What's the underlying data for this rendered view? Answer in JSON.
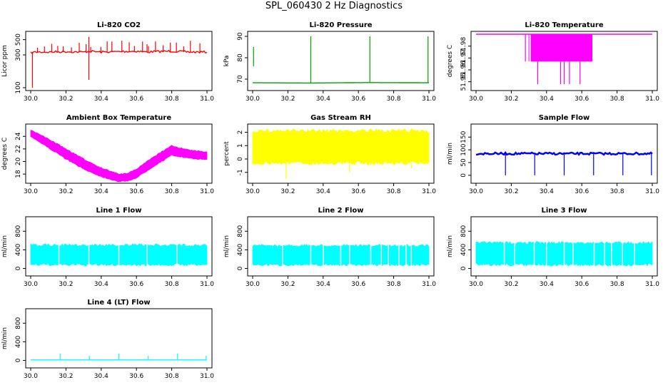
{
  "page_title": "SPL_060430  2 Hz Diagnostics",
  "chart_data": [
    {
      "id": "co2",
      "type": "line",
      "title": "Li-820 CO2",
      "ylabel": "Licor ppm",
      "color": "#ff0000",
      "xlim": [
        30.0,
        31.0
      ],
      "ylim": [
        100,
        600
      ],
      "yscale": "log",
      "xticks": [
        "30.0",
        "30.2",
        "30.4",
        "30.6",
        "30.8",
        "31.0"
      ],
      "yticks": [
        {
          "v": 100,
          "label": "100"
        },
        {
          "v": 300,
          "label": "300"
        },
        {
          "v": 500,
          "label": "500"
        }
      ],
      "series": [
        {
          "name": "CO2",
          "x": [
            30.0,
            30.02,
            30.1,
            30.2,
            30.3,
            30.33,
            30.4,
            30.5,
            30.6,
            30.66,
            30.7,
            30.8,
            30.9,
            31.0
          ],
          "values": [
            320,
            330,
            330,
            335,
            330,
            340,
            330,
            335,
            340,
            330,
            335,
            340,
            330,
            330
          ]
        }
      ],
      "spikes": [
        {
          "x": 30.01,
          "values": [
            100,
            330
          ]
        },
        {
          "x": 30.33,
          "values": [
            550,
            130
          ]
        },
        {
          "x": 30.66,
          "values": [
            330,
            430
          ]
        }
      ]
    },
    {
      "id": "pressure",
      "type": "line",
      "title": "Li-820 Pressure",
      "ylabel": "kPa",
      "color": "#00a000",
      "xlim": [
        30.0,
        31.0
      ],
      "ylim": [
        66,
        91
      ],
      "xticks": [
        "30.0",
        "30.2",
        "30.4",
        "30.6",
        "30.8",
        "31.0"
      ],
      "yticks": [
        {
          "v": 70,
          "label": "70"
        },
        {
          "v": 80,
          "label": "80"
        },
        {
          "v": 90,
          "label": "90"
        }
      ],
      "series": [
        {
          "name": "Pressure",
          "x": [
            30.0,
            30.33,
            30.66,
            31.0
          ],
          "values": [
            68.3,
            68.2,
            68.4,
            68.3
          ]
        }
      ],
      "spikes": [
        {
          "x": 30.005,
          "values": [
            76,
            85
          ]
        },
        {
          "x": 30.33,
          "values": [
            68.2,
            90
          ]
        },
        {
          "x": 30.665,
          "values": [
            68.4,
            90
          ]
        },
        {
          "x": 30.995,
          "values": [
            68.3,
            90
          ]
        }
      ]
    },
    {
      "id": "temperature",
      "type": "line",
      "title": "Li-820 Temperature",
      "ylabel": "degrees C",
      "color": "#ff00ff",
      "xlim": [
        30.0,
        31.0
      ],
      "ylim": [
        51.945,
        51.99
      ],
      "xticks": [
        "30.0",
        "30.2",
        "30.4",
        "30.6",
        "30.8",
        "31.0"
      ],
      "yticks": [
        {
          "v": 51.95,
          "label": "51.95"
        },
        {
          "v": 51.96,
          "label": "51.96"
        },
        {
          "v": 51.97,
          "label": "51.97"
        },
        {
          "v": 51.98,
          "label": "51.98"
        }
      ],
      "series": [
        {
          "name": "Temperature",
          "x": [
            30.0,
            31.0
          ],
          "values": [
            51.99,
            51.99
          ]
        }
      ],
      "band": {
        "x0": 30.31,
        "x1": 30.66,
        "values": [
          51.967,
          51.99
        ]
      },
      "spikes": [
        {
          "x": 30.28,
          "values": [
            51.99,
            51.967
          ]
        },
        {
          "x": 30.35,
          "values": [
            51.967,
            51.948
          ]
        },
        {
          "x": 30.48,
          "values": [
            51.967,
            51.948
          ]
        },
        {
          "x": 30.5,
          "values": [
            51.967,
            51.948
          ]
        },
        {
          "x": 30.53,
          "values": [
            51.967,
            51.948
          ]
        },
        {
          "x": 30.59,
          "values": [
            51.967,
            51.948
          ]
        }
      ]
    },
    {
      "id": "ambient",
      "type": "area",
      "title": "Ambient Box Temperature",
      "ylabel": "degrees C",
      "color": "#ff00ff",
      "xlim": [
        30.0,
        31.0
      ],
      "ylim": [
        17,
        25.5
      ],
      "xticks": [
        "30.0",
        "30.2",
        "30.4",
        "30.6",
        "30.8",
        "31.0"
      ],
      "yticks": [
        {
          "v": 18,
          "label": "18"
        },
        {
          "v": 20,
          "label": "20"
        },
        {
          "v": 22,
          "label": "22"
        },
        {
          "v": 24,
          "label": "24"
        }
      ],
      "series": [
        {
          "name": "upper",
          "x": [
            30.0,
            30.1,
            30.2,
            30.3,
            30.4,
            30.5,
            30.55,
            30.6,
            30.7,
            30.8,
            30.9,
            31.0
          ],
          "values": [
            25.0,
            23.6,
            22.0,
            20.4,
            19.0,
            18.0,
            18.1,
            18.8,
            20.8,
            22.5,
            21.8,
            21.5
          ]
        },
        {
          "name": "lower",
          "x": [
            30.0,
            30.1,
            30.2,
            30.3,
            30.4,
            30.5,
            30.55,
            30.6,
            30.7,
            30.8,
            30.9,
            31.0
          ],
          "values": [
            24.0,
            22.2,
            20.4,
            18.8,
            17.6,
            16.8,
            16.9,
            17.4,
            19.3,
            21.0,
            20.5,
            20.3
          ]
        }
      ]
    },
    {
      "id": "rh",
      "type": "area",
      "title": "Gas Stream RH",
      "ylabel": "percent",
      "color": "#ffff00",
      "xlim": [
        30.0,
        31.0
      ],
      "ylim": [
        -1.6,
        2.4
      ],
      "xticks": [
        "30.0",
        "30.2",
        "30.4",
        "30.6",
        "30.8",
        "31.0"
      ],
      "yticks": [
        {
          "v": -1,
          "label": "-1"
        },
        {
          "v": 0,
          "label": "0"
        },
        {
          "v": 1,
          "label": "1"
        },
        {
          "v": 2,
          "label": "2"
        }
      ],
      "series": [
        {
          "name": "upper",
          "x": [
            30.0,
            31.0
          ],
          "values": [
            2.1,
            2.1
          ]
        },
        {
          "name": "lower",
          "x": [
            30.0,
            31.0
          ],
          "values": [
            -0.3,
            -0.3
          ]
        }
      ],
      "spikes": [
        {
          "x": 30.19,
          "values": [
            -0.3,
            -1.5
          ]
        },
        {
          "x": 30.55,
          "values": [
            -0.3,
            -1.0
          ]
        },
        {
          "x": 30.9,
          "values": [
            -0.3,
            -0.7
          ]
        }
      ]
    },
    {
      "id": "sample",
      "type": "line",
      "title": "Sample Flow",
      "ylabel": "ml/min",
      "color": "#0000ff",
      "xlim": [
        30.0,
        31.0
      ],
      "ylim": [
        -20,
        190
      ],
      "xticks": [
        "30.0",
        "30.2",
        "30.4",
        "30.6",
        "30.8",
        "31.0"
      ],
      "yticks": [
        {
          "v": 0,
          "label": "0"
        },
        {
          "v": 50,
          "label": "50"
        },
        {
          "v": 100,
          "label": "100"
        },
        {
          "v": 150,
          "label": "150"
        }
      ],
      "series": [
        {
          "name": "Sample Flow",
          "x": [
            30.0,
            31.0
          ],
          "values": [
            85,
            85
          ]
        }
      ],
      "spikes": [
        {
          "x": 30.167,
          "values": [
            85,
            0
          ]
        },
        {
          "x": 30.333,
          "values": [
            85,
            0
          ]
        },
        {
          "x": 30.5,
          "values": [
            85,
            0
          ]
        },
        {
          "x": 30.667,
          "values": [
            85,
            0
          ]
        },
        {
          "x": 30.833,
          "values": [
            85,
            0
          ]
        },
        {
          "x": 30.995,
          "values": [
            85,
            0
          ]
        }
      ]
    },
    {
      "id": "line1",
      "type": "area",
      "title": "Line 1 Flow",
      "ylabel": "ml/min",
      "color": "#00ffff",
      "xlim": [
        30.0,
        31.0
      ],
      "ylim": [
        -100,
        1050
      ],
      "xticks": [
        "30.0",
        "30.2",
        "30.4",
        "30.6",
        "30.8",
        "31.0"
      ],
      "yticks": [
        {
          "v": 0,
          "label": "0"
        },
        {
          "v": 400,
          "label": "400"
        },
        {
          "v": 800,
          "label": "800"
        }
      ],
      "series": [
        {
          "name": "upper",
          "x": [
            30.0,
            31.0
          ],
          "values": [
            500,
            500
          ]
        },
        {
          "name": "lower",
          "x": [
            30.0,
            31.0
          ],
          "values": [
            80,
            80
          ]
        }
      ],
      "gaps": [
        30.16,
        30.33,
        30.5,
        30.66,
        30.83
      ]
    },
    {
      "id": "line2",
      "type": "area",
      "title": "Line 2 Flow",
      "ylabel": "ml/min",
      "color": "#00ffff",
      "xlim": [
        30.0,
        31.0
      ],
      "ylim": [
        -100,
        1050
      ],
      "xticks": [
        "30.0",
        "30.2",
        "30.4",
        "30.6",
        "30.8",
        "31.0"
      ],
      "yticks": [
        {
          "v": 0,
          "label": "0"
        },
        {
          "v": 400,
          "label": "400"
        },
        {
          "v": 800,
          "label": "800"
        }
      ],
      "series": [
        {
          "name": "upper",
          "x": [
            30.0,
            31.0
          ],
          "values": [
            490,
            490
          ]
        },
        {
          "name": "lower",
          "x": [
            30.0,
            31.0
          ],
          "values": [
            80,
            80
          ]
        }
      ],
      "gaps": [
        30.17,
        30.33,
        30.4,
        30.5,
        30.55,
        30.67,
        30.73,
        30.77,
        30.83,
        30.87,
        30.9
      ]
    },
    {
      "id": "line3",
      "type": "area",
      "title": "Line 3 Flow",
      "ylabel": "ml/min",
      "color": "#00ffff",
      "xlim": [
        30.0,
        31.0
      ],
      "ylim": [
        -100,
        1050
      ],
      "xticks": [
        "30.0",
        "30.2",
        "30.4",
        "30.6",
        "30.8",
        "31.0"
      ],
      "yticks": [
        {
          "v": 0,
          "label": "0"
        },
        {
          "v": 400,
          "label": "400"
        },
        {
          "v": 800,
          "label": "800"
        }
      ],
      "series": [
        {
          "name": "upper",
          "x": [
            30.0,
            31.0
          ],
          "values": [
            550,
            550
          ]
        },
        {
          "name": "lower",
          "x": [
            30.0,
            31.0
          ],
          "values": [
            80,
            80
          ]
        }
      ],
      "gaps": [
        30.16,
        30.22,
        30.33,
        30.4,
        30.5,
        30.55,
        30.67,
        30.73,
        30.77,
        30.83,
        30.9
      ]
    },
    {
      "id": "line4",
      "type": "line",
      "title": "Line 4 (LT) Flow",
      "ylabel": "ml/min",
      "color": "#00ffff",
      "xlim": [
        30.0,
        31.0
      ],
      "ylim": [
        -100,
        1050
      ],
      "xticks": [
        "30.0",
        "30.2",
        "30.4",
        "30.6",
        "30.8",
        "31.0"
      ],
      "yticks": [
        {
          "v": 0,
          "label": "0"
        },
        {
          "v": 400,
          "label": "400"
        },
        {
          "v": 800,
          "label": "800"
        }
      ],
      "series": [
        {
          "name": "Line 4",
          "x": [
            30.0,
            31.0
          ],
          "values": [
            10,
            10
          ]
        }
      ],
      "spikes": [
        {
          "x": 30.167,
          "values": [
            10,
            150
          ]
        },
        {
          "x": 30.333,
          "values": [
            10,
            100
          ]
        },
        {
          "x": 30.5,
          "values": [
            10,
            150
          ]
        },
        {
          "x": 30.667,
          "values": [
            10,
            100
          ]
        },
        {
          "x": 30.833,
          "values": [
            10,
            150
          ]
        },
        {
          "x": 30.995,
          "values": [
            10,
            100
          ]
        }
      ]
    }
  ]
}
